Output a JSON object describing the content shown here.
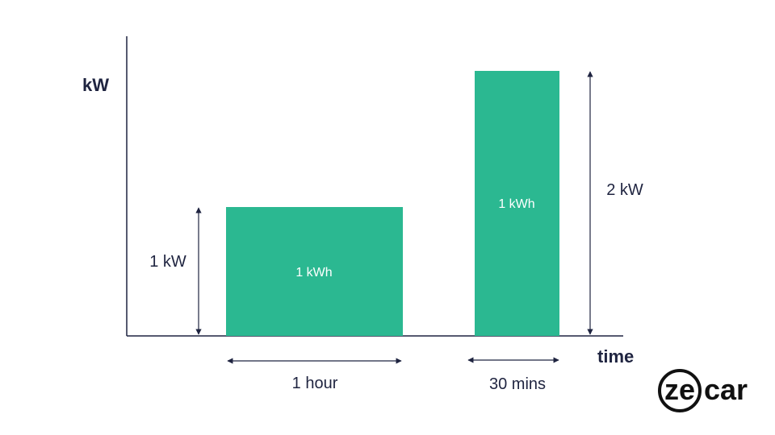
{
  "axes": {
    "y_label": "kW",
    "x_label": "time"
  },
  "bars": [
    {
      "power_label": "1 kW",
      "energy_label": "1 kWh",
      "duration_label": "1 hour",
      "power_kw": 1,
      "duration_h": 1
    },
    {
      "power_label": "2 kW",
      "energy_label": "1 kWh",
      "duration_label": "30 mins",
      "power_kw": 2,
      "duration_h": 0.5
    }
  ],
  "colors": {
    "bar": "#2bb891",
    "text": "#1f2440",
    "axis": "#1f2440"
  },
  "logo": {
    "text_left": "ze",
    "text_right": "car"
  }
}
